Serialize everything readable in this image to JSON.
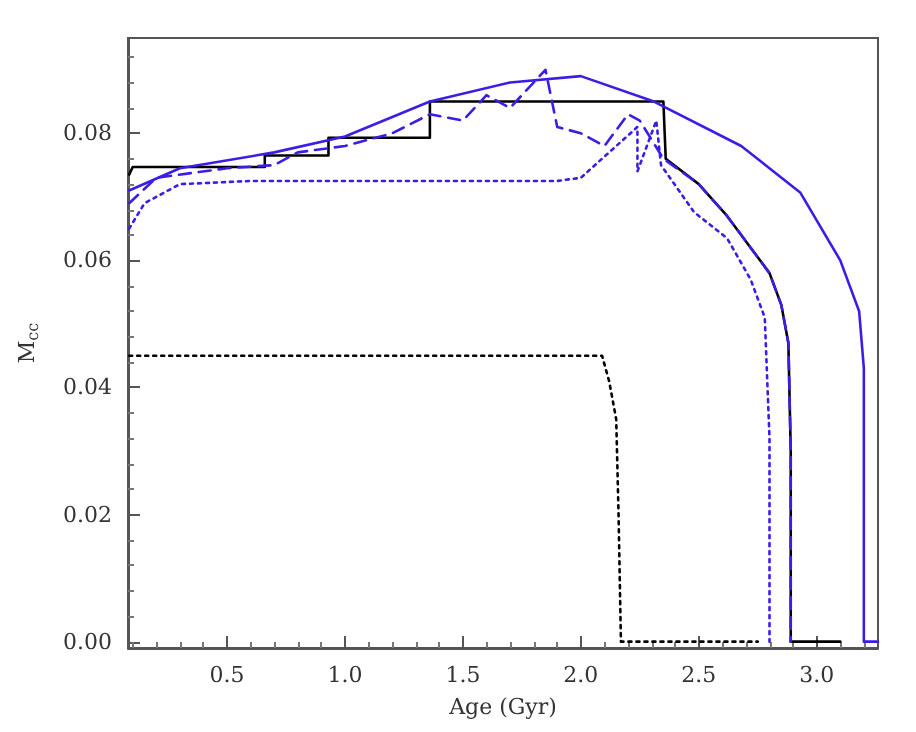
{
  "chart_data": {
    "type": "line",
    "xlabel": "Age (Gyr)",
    "ylabel": "M$_{cc}$",
    "xlim": [
      0.08,
      3.26
    ],
    "xticks": [
      0.5,
      {
        "value": 1,
        "label": "1.0"
      },
      1.5,
      {
        "value": 2,
        "label": "2.0"
      },
      2.5,
      {
        "value": 3,
        "label": "3.0"
      }
    ],
    "ylim": [
      -0.001,
      0.095
    ],
    "yticks": [
      {
        "value": 0,
        "label": "0.00"
      },
      0.02,
      0.04,
      0.06,
      0.08
    ],
    "grid": false,
    "marker": "none",
    "series": [
      {
        "color": "#000000",
        "line_style": "solid",
        "x": [
          0.085,
          0.1,
          0.66,
          0.66,
          0.93,
          0.93,
          1.36,
          1.36,
          2.35,
          2.36,
          2.5,
          2.62,
          2.72,
          2.8,
          2.85,
          2.88,
          2.89,
          2.89,
          3.1
        ],
        "values": [
          0.0735,
          0.0747,
          0.0747,
          0.0765,
          0.0765,
          0.0793,
          0.0793,
          0.085,
          0.085,
          0.076,
          0.072,
          0.067,
          0.062,
          0.058,
          0.053,
          0.047,
          0.03,
          0.0,
          0.0
        ]
      },
      {
        "color": "#3b1ee6",
        "line_style": "solid",
        "x": [
          0.085,
          0.3,
          0.7,
          1.0,
          1.36,
          1.7,
          2.0,
          2.31,
          2.68,
          2.93,
          3.1,
          3.18,
          3.2,
          3.2,
          3.26
        ],
        "values": [
          0.071,
          0.0745,
          0.077,
          0.0795,
          0.085,
          0.088,
          0.089,
          0.085,
          0.078,
          0.0707,
          0.06,
          0.052,
          0.043,
          0.0,
          0.0
        ]
      },
      {
        "color": "#3b1ee6",
        "line_style": "dashed",
        "x": [
          0.085,
          0.2,
          0.5,
          0.7,
          0.8,
          1.0,
          1.2,
          1.36,
          1.5,
          1.6,
          1.7,
          1.85,
          1.9,
          2.0,
          2.1,
          2.2,
          2.25,
          2.35,
          2.5,
          2.62,
          2.72,
          2.8,
          2.85,
          2.88,
          2.89,
          2.89
        ],
        "values": [
          0.069,
          0.073,
          0.0745,
          0.075,
          0.077,
          0.078,
          0.08,
          0.083,
          0.082,
          0.086,
          0.084,
          0.09,
          0.081,
          0.08,
          0.078,
          0.083,
          0.082,
          0.076,
          0.072,
          0.067,
          0.062,
          0.058,
          0.053,
          0.047,
          0.03,
          0.0
        ]
      },
      {
        "color": "#3b1ee6",
        "line_style": "dotted",
        "x": [
          0.085,
          0.15,
          0.3,
          0.6,
          1.0,
          1.5,
          1.9,
          2.0,
          2.24,
          2.24,
          2.32,
          2.34,
          2.48,
          2.62,
          2.72,
          2.78,
          2.8,
          2.8
        ],
        "values": [
          0.065,
          0.069,
          0.072,
          0.0725,
          0.0725,
          0.0725,
          0.0725,
          0.073,
          0.081,
          0.074,
          0.082,
          0.075,
          0.0676,
          0.0635,
          0.057,
          0.051,
          0.032,
          0.0
        ]
      },
      {
        "color": "#000000",
        "line_style": "dotted",
        "x": [
          0.085,
          2.09,
          2.12,
          2.15,
          2.16,
          2.17,
          2.75
        ],
        "values": [
          0.045,
          0.045,
          0.041,
          0.035,
          0.02,
          0.0,
          0.0
        ]
      }
    ]
  }
}
